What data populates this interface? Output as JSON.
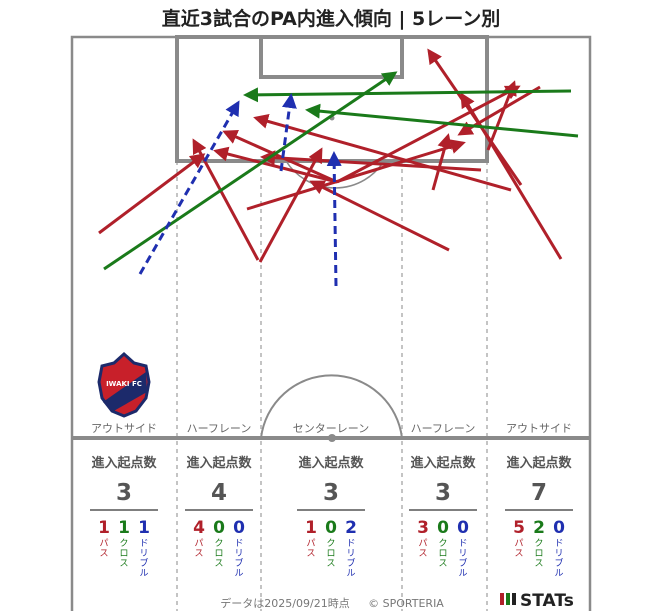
{
  "title": "直近3試合のPA内進入傾向 | 5レーン別",
  "footer": {
    "timestamp": "データは2025/09/21時点",
    "credit": "© SPORTERIA",
    "brand": "STATs"
  },
  "colors": {
    "pass": "#b0202a",
    "cross": "#1a7a1a",
    "dribble": "#1f2fb0",
    "pitch_line": "#8a8a8a",
    "number_gray": "#555555"
  },
  "crest": {
    "icon": "club-crest-icon",
    "text": "IWAKI FC"
  },
  "header_label": "進入起点数",
  "lanes": [
    {
      "name": "アウトサイド",
      "total": 3,
      "pass": 1,
      "cross": 1,
      "dribble": 1
    },
    {
      "name": "ハーフレーン",
      "total": 4,
      "pass": 4,
      "cross": 0,
      "dribble": 0
    },
    {
      "name": "センターレーン",
      "total": 3,
      "pass": 1,
      "cross": 0,
      "dribble": 2
    },
    {
      "name": "ハーフレーン",
      "total": 3,
      "pass": 3,
      "cross": 0,
      "dribble": 0
    },
    {
      "name": "アウトサイド",
      "total": 7,
      "pass": 5,
      "cross": 2,
      "dribble": 0
    }
  ],
  "type_labels": {
    "pass": "パス",
    "cross": "クロス",
    "dribble": "ドリブル"
  },
  "chart_data": {
    "type": "scatter",
    "title": "直近3試合のPA内進入傾向 | 5レーン別",
    "series": [
      {
        "name": "パス",
        "arrows": [
          {
            "from": [
              99,
              233
            ],
            "to": [
              203,
              155
            ]
          },
          {
            "from": [
              260,
              262
            ],
            "to": [
              321,
              150
            ]
          },
          {
            "from": [
              258,
              260
            ],
            "to": [
              194,
              141
            ]
          },
          {
            "from": [
              337,
              182
            ],
            "to": [
              518,
              87
            ]
          },
          {
            "from": [
              337,
              182
            ],
            "to": [
              216,
              151
            ]
          },
          {
            "from": [
              337,
              182
            ],
            "to": [
              225,
              132
            ]
          },
          {
            "from": [
              247,
              209
            ],
            "to": [
              463,
              143
            ]
          },
          {
            "from": [
              449,
              250
            ],
            "to": [
              312,
              182
            ]
          },
          {
            "from": [
              433,
              190
            ],
            "to": [
              448,
              136
            ]
          },
          {
            "from": [
              521,
              185
            ],
            "to": [
              429,
              51
            ]
          },
          {
            "from": [
              511,
              190
            ],
            "to": [
              256,
              118
            ]
          },
          {
            "from": [
              561,
              259
            ],
            "to": [
              462,
              95
            ]
          },
          {
            "from": [
              488,
              150
            ],
            "to": [
              514,
              83
            ]
          },
          {
            "from": [
              540,
              87
            ],
            "to": [
              460,
              134
            ]
          },
          {
            "from": [
              481,
              170
            ],
            "to": [
              263,
              157
            ]
          }
        ]
      },
      {
        "name": "クロス",
        "arrows": [
          {
            "from": [
              104,
              269
            ],
            "to": [
              395,
              73
            ]
          },
          {
            "from": [
              571,
              91
            ],
            "to": [
              246,
              95
            ]
          },
          {
            "from": [
              578,
              136
            ],
            "to": [
              308,
              110
            ]
          }
        ]
      },
      {
        "name": "ドリブル",
        "arrows": [
          {
            "from": [
              140,
              274
            ],
            "to": [
              238,
              103
            ]
          },
          {
            "from": [
              281,
              171
            ],
            "to": [
              291,
              96
            ]
          },
          {
            "from": [
              336,
              286
            ],
            "to": [
              334,
              154
            ]
          }
        ]
      }
    ]
  }
}
